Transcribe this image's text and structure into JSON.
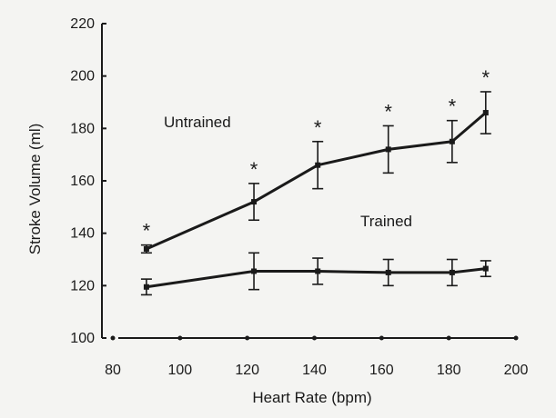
{
  "chart_data": {
    "type": "line",
    "title": "",
    "xlabel": "Heart Rate (bpm)",
    "ylabel": "Stroke Volume (ml)",
    "xlim": [
      80,
      200
    ],
    "ylim": [
      100,
      220
    ],
    "xticks": [
      80,
      100,
      120,
      140,
      160,
      180,
      200
    ],
    "yticks": [
      100,
      120,
      140,
      160,
      180,
      200,
      220
    ],
    "grid": false,
    "series": [
      {
        "name": "Untrained",
        "x": [
          90,
          122,
          141,
          162,
          181,
          191
        ],
        "y": [
          134,
          152,
          166,
          172,
          175,
          186
        ],
        "err": [
          1.5,
          7,
          9,
          9,
          8,
          8
        ],
        "significance": [
          "*",
          "*",
          "*",
          "*",
          "*",
          "*"
        ]
      },
      {
        "name": "Trained",
        "x": [
          90,
          122,
          141,
          162,
          181,
          191
        ],
        "y": [
          119.5,
          125.5,
          125.5,
          125,
          125,
          126.5
        ],
        "err": [
          3,
          7,
          5,
          5,
          5,
          3
        ],
        "significance": []
      }
    ],
    "baseline": {
      "x": [
        80,
        100,
        120,
        140,
        160,
        180,
        200
      ],
      "y": [
        100,
        100,
        100,
        100,
        100,
        100,
        100
      ]
    },
    "colors": {
      "ink": "#1a1a1a",
      "background": "#f4f4f2"
    }
  }
}
